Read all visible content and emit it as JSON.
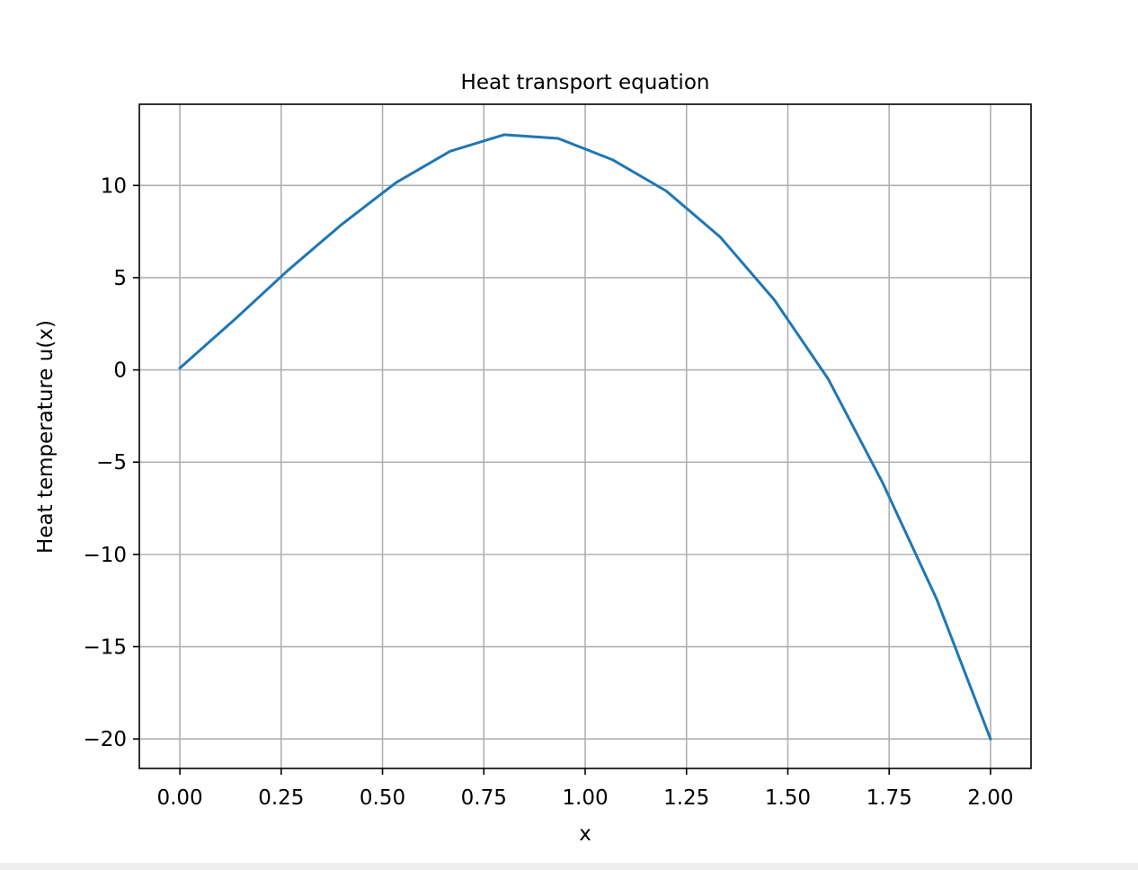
{
  "chart_data": {
    "type": "line",
    "title": "Heat transport equation",
    "xlabel": "x",
    "ylabel": "Heat temperature u(x)",
    "xlim": [
      -0.1,
      2.1
    ],
    "ylim": [
      -21.6,
      14.4
    ],
    "grid": true,
    "x_ticks": [
      0.0,
      0.25,
      0.5,
      0.75,
      1.0,
      1.25,
      1.5,
      1.75,
      2.0
    ],
    "x_tick_labels": [
      "0.00",
      "0.25",
      "0.50",
      "0.75",
      "1.00",
      "1.25",
      "1.50",
      "1.75",
      "2.00"
    ],
    "y_ticks": [
      10,
      5,
      0,
      -5,
      -10,
      -15,
      -20
    ],
    "y_tick_labels": [
      "10",
      "5",
      "0",
      "−5",
      "−10",
      "−15",
      "−20"
    ],
    "series": [
      {
        "color": "#1f77b4",
        "x": [
          0.0,
          0.1333,
          0.2667,
          0.4,
          0.5333,
          0.6667,
          0.8,
          0.9333,
          1.0667,
          1.2,
          1.3333,
          1.4667,
          1.6,
          1.7333,
          1.8667,
          2.0
        ],
        "y": [
          0.1,
          2.7,
          5.4,
          7.9,
          10.15,
          11.85,
          12.75,
          12.55,
          11.4,
          9.7,
          7.2,
          3.8,
          -0.5,
          -6.1,
          -12.4,
          -20.0
        ]
      }
    ]
  }
}
